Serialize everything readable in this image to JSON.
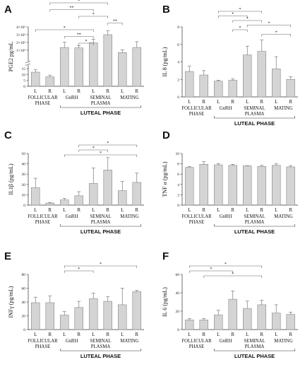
{
  "group_labels": {
    "follicular": "FOLLICULAR PHASE",
    "gnrh": "GnRH",
    "seminal": "SEMINAL PLASMA",
    "mating": "MATING",
    "luteal": "LUTEAL PHASE"
  },
  "chart_data": [
    {
      "panel": "A",
      "type": "bar",
      "ylabel": "PGE2 pg/mL",
      "scale": "broken",
      "yticks": [
        "4×10³",
        "3×10³",
        "2×10³",
        "1×10³",
        "15",
        "10",
        "5",
        "0"
      ],
      "categories": [
        "L",
        "R",
        "L",
        "R",
        "L",
        "R",
        "L",
        "R"
      ],
      "values": [
        12,
        8,
        1350,
        1300,
        1950,
        3000,
        700,
        1350
      ],
      "errors": [
        2,
        1.5,
        700,
        300,
        450,
        500,
        350,
        750
      ],
      "significance": [
        {
          "from": 1,
          "to": 5,
          "label": "*"
        },
        {
          "from": 1,
          "to": 4,
          "label": "**"
        },
        {
          "from": 3,
          "to": 5,
          "label": "*"
        },
        {
          "from": 5,
          "to": 6,
          "label": "**"
        },
        {
          "from": 0,
          "to": 4,
          "label": "*"
        },
        {
          "from": 2,
          "to": 4,
          "label": "**"
        },
        {
          "from": 3,
          "to": 4,
          "label": "*"
        }
      ]
    },
    {
      "panel": "B",
      "type": "bar",
      "ylabel": "IL 8 (pg/mL)",
      "ylim": [
        0,
        8
      ],
      "yticks": [
        0,
        2,
        4,
        6,
        8
      ],
      "categories": [
        "L",
        "R",
        "L",
        "R",
        "L",
        "R",
        "L",
        "R"
      ],
      "values": [
        2.9,
        2.5,
        1.8,
        1.9,
        4.8,
        5.2,
        3.2,
        2.0
      ],
      "errors": [
        0.6,
        0.5,
        0.1,
        0.15,
        1.0,
        1.3,
        1.4,
        0.3
      ],
      "significance": [
        {
          "from": 2,
          "to": 5,
          "label": "*"
        },
        {
          "from": 2,
          "to": 4,
          "label": "*"
        },
        {
          "from": 3,
          "to": 5,
          "label": "*"
        },
        {
          "from": 4,
          "to": 7,
          "label": "*"
        },
        {
          "from": 3,
          "to": 4,
          "label": "*"
        },
        {
          "from": 5,
          "to": 7,
          "label": "*"
        }
      ]
    },
    {
      "panel": "C",
      "type": "bar",
      "ylabel": "IL1β (pg/mL)",
      "ylim": [
        0,
        50
      ],
      "yticks": [
        0,
        10,
        20,
        30,
        40,
        50
      ],
      "categories": [
        "L",
        "R",
        "L",
        "R",
        "L",
        "R",
        "L",
        "R"
      ],
      "values": [
        17,
        2,
        5,
        9,
        21,
        34,
        14,
        22
      ],
      "errors": [
        9,
        0.5,
        1.5,
        4,
        15,
        12,
        9,
        9
      ],
      "significance": [
        {
          "from": 3,
          "to": 7,
          "label": "*"
        },
        {
          "from": 3,
          "to": 5,
          "label": "*"
        },
        {
          "from": 2,
          "to": 7,
          "label": "*"
        }
      ]
    },
    {
      "panel": "D",
      "type": "bar",
      "ylabel": "TNF α (pg/mL)",
      "ylim": [
        0,
        10
      ],
      "yticks": [
        0,
        2,
        4,
        6,
        8,
        10
      ],
      "categories": [
        "L",
        "R",
        "L",
        "R",
        "L",
        "R",
        "L",
        "R"
      ],
      "values": [
        7.3,
        7.9,
        7.8,
        7.7,
        7.6,
        7.5,
        7.7,
        7.4
      ],
      "errors": [
        0.15,
        0.5,
        0.25,
        0.2,
        0.05,
        0.2,
        0.3,
        0.25
      ],
      "significance": []
    },
    {
      "panel": "E",
      "type": "bar",
      "ylabel": "INFγ (pg/mL)",
      "ylim": [
        0,
        80
      ],
      "yticks": [
        0,
        20,
        40,
        60,
        80
      ],
      "categories": [
        "L",
        "R",
        "L",
        "R",
        "L",
        "R",
        "L",
        "R"
      ],
      "values": [
        39,
        39,
        21,
        32,
        45,
        41,
        36,
        55
      ],
      "errors": [
        8,
        10,
        5,
        9,
        8,
        7,
        24,
        2
      ],
      "significance": [
        {
          "from": 2,
          "to": 7,
          "label": "*"
        },
        {
          "from": 2,
          "to": 4,
          "label": "*"
        }
      ]
    },
    {
      "panel": "F",
      "type": "bar",
      "ylabel": "IL 6 (pg/mL)",
      "ylim": [
        0,
        60
      ],
      "yticks": [
        0,
        20,
        40,
        60
      ],
      "categories": [
        "L",
        "R",
        "L",
        "R",
        "L",
        "R",
        "L",
        "R"
      ],
      "values": [
        10.5,
        10.5,
        16,
        33,
        23,
        27,
        18,
        16.5
      ],
      "errors": [
        1.5,
        1.5,
        5,
        9,
        8,
        5,
        9,
        2.5
      ],
      "significance": [
        {
          "from": 0,
          "to": 5,
          "label": "*"
        },
        {
          "from": 0,
          "to": 3,
          "label": "*"
        },
        {
          "from": 1,
          "to": 5,
          "label": "*"
        }
      ]
    }
  ]
}
